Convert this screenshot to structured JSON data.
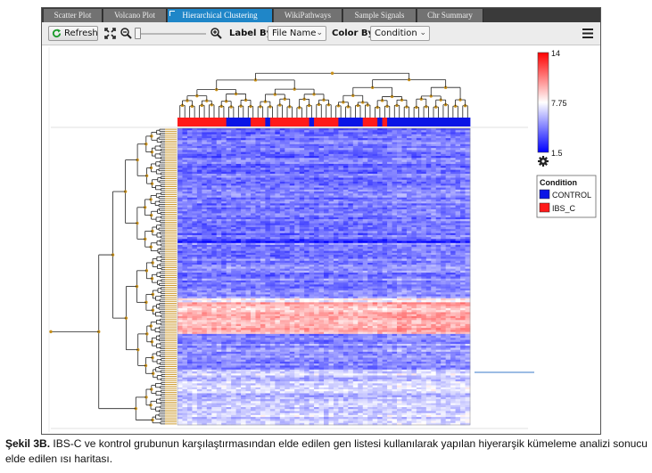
{
  "tabs": [
    {
      "label": "Scatter Plot",
      "active": false
    },
    {
      "label": "Volcano Plot",
      "active": false
    },
    {
      "label": "Hierarchical Clustering",
      "active": true
    },
    {
      "label": "WikiPathways",
      "active": false
    },
    {
      "label": "Sample Signals",
      "active": false
    },
    {
      "label": "Chr Summary",
      "active": false
    }
  ],
  "toolbar": {
    "refresh_label": "Refresh",
    "label_by_label": "Label By:",
    "label_by_value": "File Name",
    "color_by_label": "Color By:",
    "color_by_value": "Condition"
  },
  "chart_data": {
    "type": "heatmap",
    "color_scale": {
      "min": 1.5,
      "mid": 7.75,
      "max": 14,
      "min_label": "1.5",
      "mid_label": "7.75",
      "max_label": "14",
      "low_color": "#0000ff",
      "mid_color": "#ffffff",
      "high_color": "#ff0000"
    },
    "column_condition_bar": [
      "IBS_C",
      "IBS_C",
      "IBS_C",
      "IBS_C",
      "IBS_C",
      "IBS_C",
      "IBS_C",
      "IBS_C",
      "IBS_C",
      "IBS_C",
      "CONTROL",
      "CONTROL",
      "CONTROL",
      "CONTROL",
      "CONTROL",
      "IBS_C",
      "IBS_C",
      "IBS_C",
      "CONTROL",
      "IBS_C",
      "IBS_C",
      "IBS_C",
      "IBS_C",
      "IBS_C",
      "IBS_C",
      "IBS_C",
      "IBS_C",
      "CONTROL",
      "IBS_C",
      "IBS_C",
      "IBS_C",
      "IBS_C",
      "IBS_C",
      "CONTROL",
      "CONTROL",
      "CONTROL",
      "CONTROL",
      "CONTROL",
      "IBS_C",
      "IBS_C",
      "IBS_C",
      "CONTROL",
      "IBS_C",
      "CONTROL",
      "CONTROL",
      "CONTROL",
      "CONTROL",
      "CONTROL",
      "CONTROL",
      "CONTROL",
      "CONTROL",
      "CONTROL",
      "CONTROL",
      "CONTROL",
      "CONTROL",
      "CONTROL",
      "CONTROL",
      "CONTROL",
      "CONTROL",
      "CONTROL"
    ],
    "legend": {
      "title": "Condition",
      "items": [
        {
          "label": "CONTROL",
          "color": "#0a14e6"
        },
        {
          "label": "IBS_C",
          "color": "#ff1a1a"
        }
      ]
    }
  },
  "caption": {
    "label": "Şekil 3B.",
    "text": " IBS-C ve kontrol grubunun karşılaştırmasından elde edilen gen listesi kullanılarak yapılan hiyerarşik kümeleme analizi sonucu elde edilen ısı haritası."
  }
}
